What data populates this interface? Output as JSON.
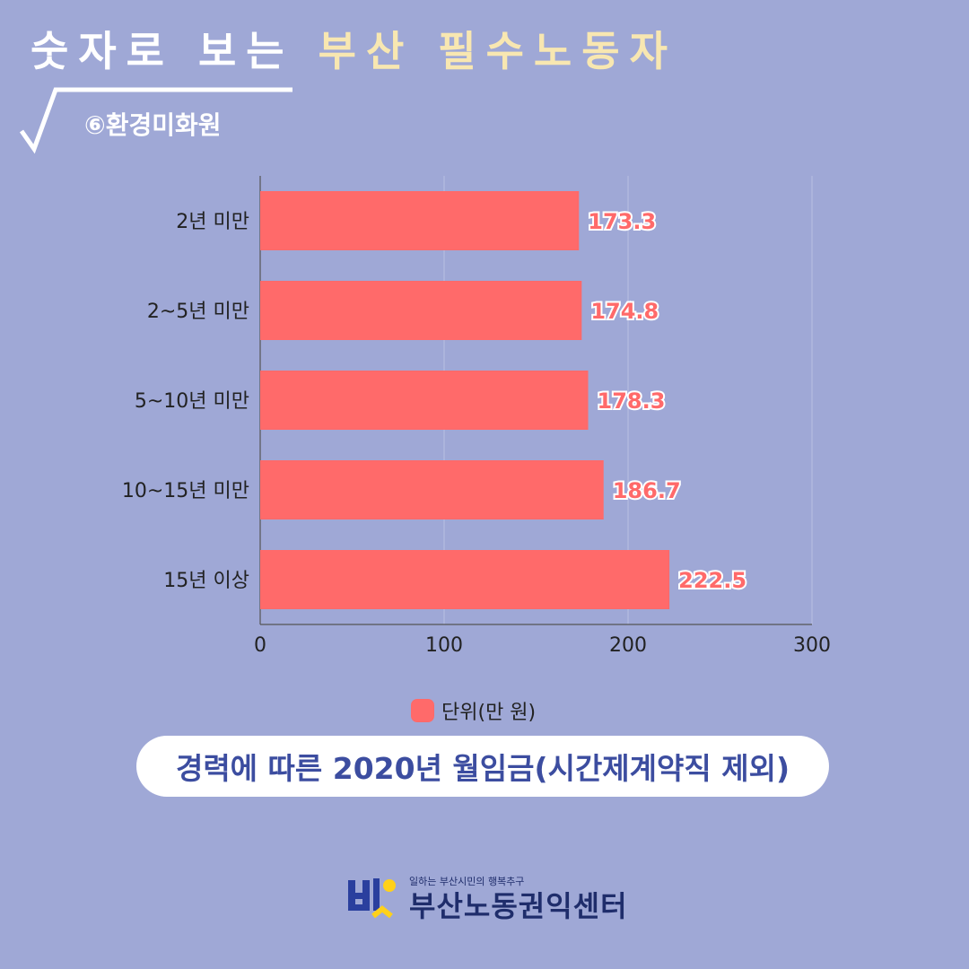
{
  "header": {
    "title_white": "숫자로 보는",
    "title_yellow": "부산 필수노동자",
    "subtitle": "⑥환경미화원"
  },
  "chart_data": {
    "type": "bar",
    "orientation": "horizontal",
    "categories": [
      "2년 미만",
      "2~5년 미만",
      "5~10년 미만",
      "10~15년 미만",
      "15년 이상"
    ],
    "series": [
      {
        "name": "단위(만 원)",
        "values": [
          173.3,
          174.8,
          178.3,
          186.7,
          222.5
        ]
      }
    ],
    "xlim": [
      0,
      300
    ],
    "xticks": [
      "0",
      "100",
      "200",
      "300"
    ],
    "grid": true,
    "legend_position": "bottom",
    "bar_color": "#ff6a6a",
    "label_color": "#ff6a6a",
    "title": "경력에 따른 2020년 월임금(시간제계약직 제외)"
  },
  "legend": {
    "label": "단위(만 원)"
  },
  "caption": "경력에 따른 2020년 월임금(시간제계약직 제외)",
  "logo": {
    "tagline": "일하는 부산시민의 행복추구",
    "name": "부산노동권익센터"
  },
  "colors": {
    "background": "#9fa8d6",
    "accent_yellow": "#f8e7b1",
    "navy": "#3c4da0"
  }
}
